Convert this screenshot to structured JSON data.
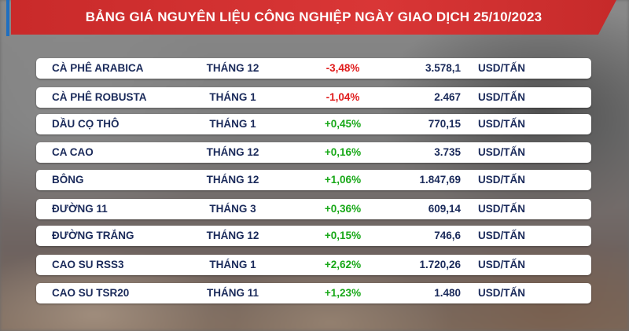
{
  "header": {
    "title": "BẢNG GIÁ NGUYÊN LIỆU CÔNG NGHIỆP NGÀY GIAO DỊCH 25/10/2023"
  },
  "colors": {
    "header": "#d93636",
    "negative": "#e01b1b",
    "positive": "#18a818",
    "text": "#1a2a5a"
  },
  "rows": [
    {
      "name": "CÀ PHÊ ARABICA",
      "month": "THÁNG 12",
      "change": "-3,48%",
      "direction": "neg",
      "price": "3.578,1",
      "unit": "USD/TẤN"
    },
    {
      "name": "CÀ PHÊ ROBUSTA",
      "month": "THÁNG 1",
      "change": "-1,04%",
      "direction": "neg",
      "price": "2.467",
      "unit": "USD/TẤN"
    },
    {
      "name": "DẦU CỌ THÔ",
      "month": "THÁNG 1",
      "change": "+0,45%",
      "direction": "pos",
      "price": "770,15",
      "unit": "USD/TẤN"
    },
    {
      "name": "CA CAO",
      "month": "THÁNG 12",
      "change": "+0,16%",
      "direction": "pos",
      "price": "3.735",
      "unit": "USD/TẤN"
    },
    {
      "name": "BÔNG",
      "month": "THÁNG 12",
      "change": "+1,06%",
      "direction": "pos",
      "price": "1.847,69",
      "unit": "USD/TẤN"
    },
    {
      "name": "ĐƯỜNG 11",
      "month": "THÁNG 3",
      "change": "+0,36%",
      "direction": "pos",
      "price": "609,14",
      "unit": "USD/TẤN"
    },
    {
      "name": "ĐƯỜNG TRẮNG",
      "month": "THÁNG 12",
      "change": "+0,15%",
      "direction": "pos",
      "price": "746,6",
      "unit": "USD/TẤN"
    },
    {
      "name": "CAO SU RSS3",
      "month": "THÁNG 1",
      "change": "+2,62%",
      "direction": "pos",
      "price": "1.720,26",
      "unit": "USD/TẤN"
    },
    {
      "name": "CAO SU TSR20",
      "month": "THÁNG 11",
      "change": "+1,23%",
      "direction": "pos",
      "price": "1.480",
      "unit": "USD/TẤN"
    }
  ]
}
